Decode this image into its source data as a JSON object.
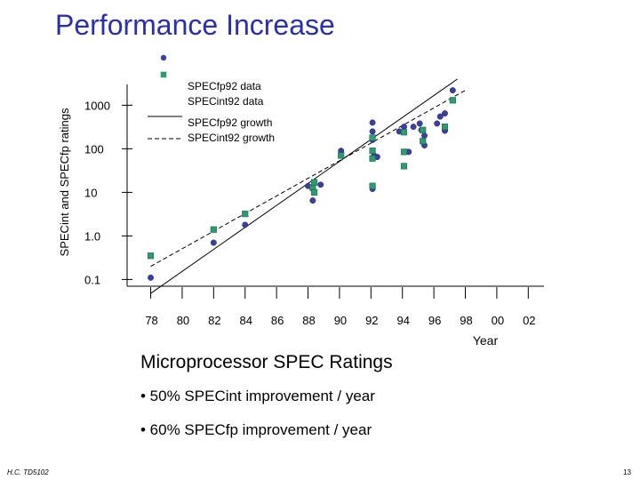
{
  "slide": {
    "title": "Performance Increase",
    "subtitle": "Microprocessor SPEC Ratings",
    "bullets": [
      "• 50% SPECint improvement / year",
      "• 60% SPECfp improvement / year"
    ],
    "footer_left": "H.C. TD5102",
    "page_number": "13"
  },
  "colors": {
    "title": "#2b2fa8",
    "fp_marker": "#3b3f9e",
    "int_marker": "#2e9a72",
    "axis": "#000000"
  },
  "chart_data": {
    "type": "scatter",
    "xlabel": "Year",
    "ylabel": "SPECint and SPECfp ratings",
    "y_scale": "log",
    "ylim": [
      0.07,
      3000
    ],
    "xlim": [
      1976.5,
      2003
    ],
    "x_ticks": [
      {
        "label": "78",
        "x": 1978
      },
      {
        "label": "80",
        "x": 1980
      },
      {
        "label": "82",
        "x": 1982
      },
      {
        "label": "84",
        "x": 1984
      },
      {
        "label": "86",
        "x": 1986
      },
      {
        "label": "88",
        "x": 1988
      },
      {
        "label": "90",
        "x": 1990
      },
      {
        "label": "92",
        "x": 1992
      },
      {
        "label": "94",
        "x": 1994
      },
      {
        "label": "96",
        "x": 1996
      },
      {
        "label": "98",
        "x": 1998
      },
      {
        "label": "00",
        "x": 2000
      },
      {
        "label": "02",
        "x": 2002
      }
    ],
    "y_ticks": [
      {
        "label": "0.1",
        "y": 0.1
      },
      {
        "label": "1.0",
        "y": 1
      },
      {
        "label": "10",
        "y": 10
      },
      {
        "label": "100",
        "y": 100
      },
      {
        "label": "1000",
        "y": 1000
      }
    ],
    "legend": {
      "position": "top",
      "entries": [
        {
          "label": "SPECfp92 data",
          "kind": "circle",
          "series": "fp"
        },
        {
          "label": "SPECint92 data",
          "kind": "square",
          "series": "int"
        },
        {
          "label": "SPECfp92 growth",
          "kind": "solid-line",
          "series": "fp"
        },
        {
          "label": "SPECint92 growth",
          "kind": "dashed-line",
          "series": "int"
        }
      ]
    },
    "series": [
      {
        "name": "SPECfp92 data",
        "marker": "circle",
        "points": [
          [
            1978,
            0.11
          ],
          [
            1982,
            0.7
          ],
          [
            1984,
            1.8
          ],
          [
            1988,
            14
          ],
          [
            1988.3,
            12
          ],
          [
            1988.3,
            6.5
          ],
          [
            1988.8,
            15
          ],
          [
            1990.1,
            90
          ],
          [
            1992.1,
            400
          ],
          [
            1992.1,
            250
          ],
          [
            1992.1,
            160
          ],
          [
            1992.1,
            12
          ],
          [
            1992.2,
            70
          ],
          [
            1992.4,
            65
          ],
          [
            1993.8,
            250
          ],
          [
            1994.1,
            320
          ],
          [
            1994.4,
            85
          ],
          [
            1994.7,
            320
          ],
          [
            1995.1,
            380
          ],
          [
            1995.2,
            270
          ],
          [
            1995.4,
            200
          ],
          [
            1995.4,
            120
          ],
          [
            1996.2,
            380
          ],
          [
            1996.4,
            550
          ],
          [
            1996.7,
            260
          ],
          [
            1996.7,
            650
          ],
          [
            1997.2,
            2200
          ]
        ]
      },
      {
        "name": "SPECint92 data",
        "marker": "square",
        "points": [
          [
            1978,
            0.35
          ],
          [
            1982,
            1.4
          ],
          [
            1984,
            3.2
          ],
          [
            1988.3,
            13
          ],
          [
            1988.4,
            10
          ],
          [
            1988.4,
            17
          ],
          [
            1990.1,
            70
          ],
          [
            1992.1,
            180
          ],
          [
            1992.1,
            90
          ],
          [
            1992.1,
            60
          ],
          [
            1992.1,
            14
          ],
          [
            1994.1,
            240
          ],
          [
            1994.1,
            85
          ],
          [
            1994.1,
            40
          ],
          [
            1995.3,
            270
          ],
          [
            1995.3,
            150
          ],
          [
            1996.7,
            320
          ],
          [
            1997.2,
            1300
          ]
        ]
      }
    ],
    "growth_lines": [
      {
        "name": "SPECfp92 growth",
        "style": "solid",
        "points": [
          [
            1978,
            0.048
          ],
          [
            1997.5,
            4000
          ]
        ]
      },
      {
        "name": "SPECint92 growth",
        "style": "dashed",
        "points": [
          [
            1978,
            0.2
          ],
          [
            1998,
            2200
          ]
        ]
      }
    ]
  }
}
